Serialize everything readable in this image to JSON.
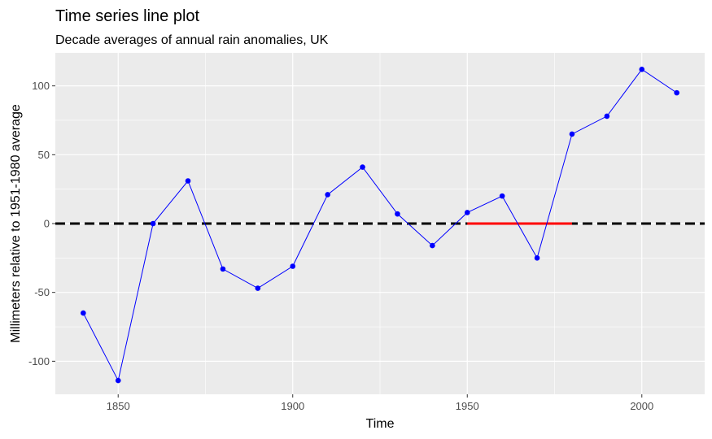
{
  "chart_data": {
    "type": "line",
    "title": "Time series line plot",
    "subtitle": "Decade averages of annual rain anomalies, UK",
    "xlabel": "Time",
    "ylabel": "Millimeters relative to 1951-1980 average",
    "xlim": [
      1832,
      2018
    ],
    "ylim": [
      -124,
      124
    ],
    "x_ticks": [
      1850,
      1900,
      1950,
      2000
    ],
    "y_ticks": [
      -100,
      -50,
      0,
      50,
      100
    ],
    "grid": true,
    "series": [
      {
        "x": [
          1840,
          1850,
          1860,
          1870,
          1880,
          1890,
          1900,
          1910,
          1920,
          1930,
          1940,
          1950,
          1960,
          1970,
          1980,
          1990,
          2000,
          2010
        ],
        "values": [
          -65,
          -114,
          0,
          31,
          -33,
          -47,
          -31,
          21,
          41,
          7,
          -16,
          8,
          20,
          -25,
          65,
          78,
          112,
          95
        ],
        "color": "#0000ff"
      }
    ],
    "reference_lines": [
      {
        "y": 0,
        "color": "#000000",
        "style": "dashed"
      },
      {
        "y": 0,
        "x_from": 1950,
        "x_to": 1980,
        "color": "#ff0000",
        "style": "solid"
      }
    ],
    "panel_background": "#ebebeb",
    "gridline_color": "#ffffff"
  }
}
